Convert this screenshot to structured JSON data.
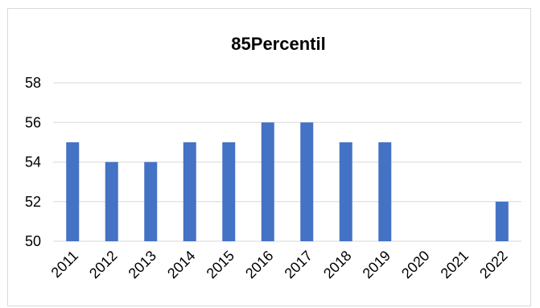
{
  "chart_data": {
    "type": "bar",
    "title": "85Percentil",
    "xlabel": "",
    "ylabel": "",
    "categories": [
      "2011",
      "2012",
      "2013",
      "2014",
      "2015",
      "2016",
      "2017",
      "2018",
      "2019",
      "2020",
      "2021",
      "2022"
    ],
    "values": [
      55,
      54,
      54,
      55,
      55,
      56,
      56,
      55,
      55,
      null,
      null,
      52
    ],
    "ylim": [
      50,
      58
    ],
    "yticks": [
      "50",
      "52",
      "54",
      "56",
      "58"
    ],
    "grid": true,
    "legend": "none",
    "colors": {
      "bar": "#4472c4",
      "grid": "#d9d9d9",
      "border": "#d9d9d9"
    }
  }
}
